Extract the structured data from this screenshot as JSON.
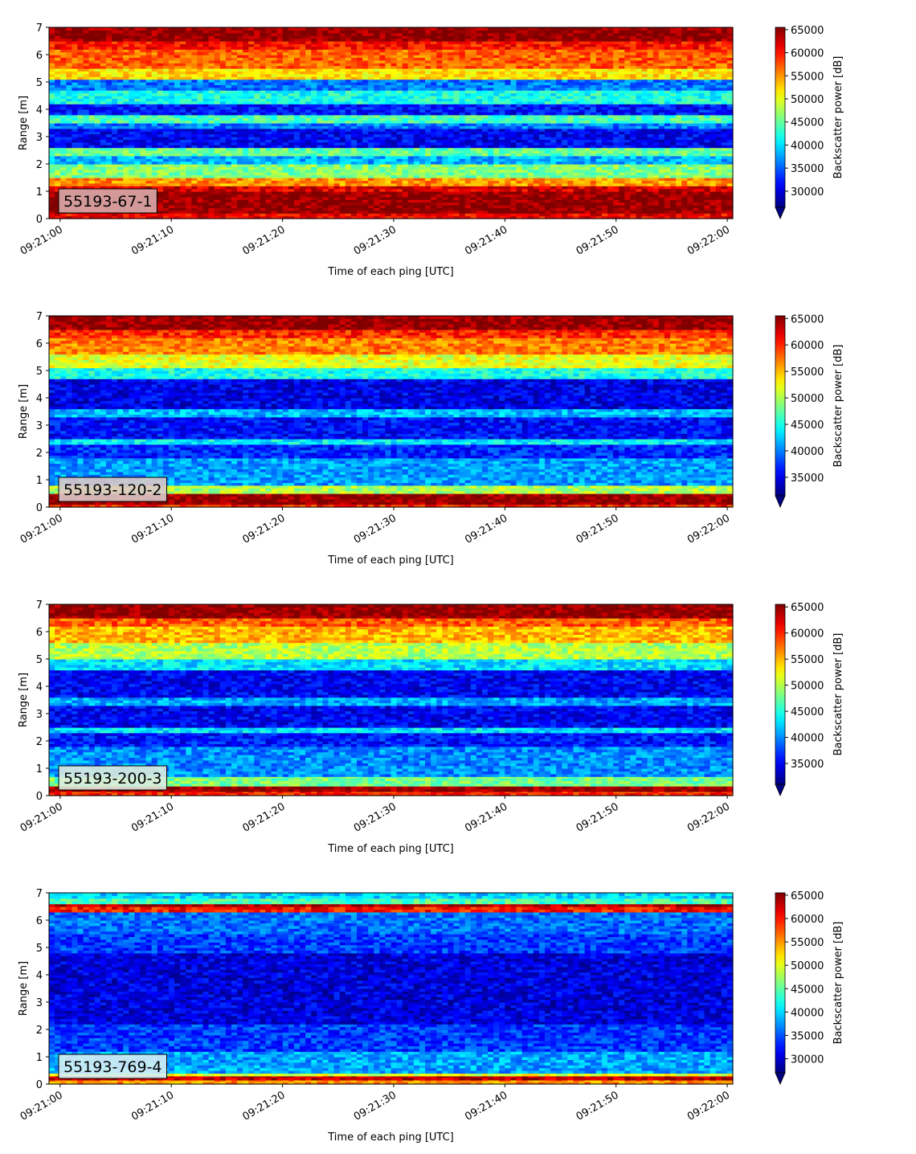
{
  "chart_data": [
    {
      "type": "heatmap",
      "label": "55193-67-1",
      "label_box_color": "#d9aaaa",
      "xlabel": "Time of each ping [UTC]",
      "ylabel": "Range [m]",
      "x_ticks": [
        "09:21:00",
        "09:21:10",
        "09:21:20",
        "09:21:30",
        "09:21:40",
        "09:21:50",
        "09:22:00"
      ],
      "xlim": [
        "09:20:59",
        "09:22:00.5"
      ],
      "ylim": [
        0,
        7
      ],
      "y_ticks": [
        0,
        1,
        2,
        3,
        4,
        5,
        6,
        7
      ],
      "colorbar": {
        "label": "Backscatter power [dB]",
        "ticks": [
          30000,
          35000,
          40000,
          45000,
          50000,
          55000,
          60000,
          65000
        ],
        "range": [
          26500,
          65500
        ],
        "extend": "min",
        "colormap": "jet"
      },
      "layers": [
        {
          "y": [
            0.0,
            0.2
          ],
          "value": 61000
        },
        {
          "y": [
            0.2,
            1.0
          ],
          "value": 65000
        },
        {
          "y": [
            1.0,
            1.2
          ],
          "value": 62000
        },
        {
          "y": [
            1.2,
            1.5
          ],
          "value": 55000
        },
        {
          "y": [
            1.5,
            2.0
          ],
          "value": 46000
        },
        {
          "y": [
            2.0,
            2.3
          ],
          "value": 38000
        },
        {
          "y": [
            2.3,
            2.6
          ],
          "value": 45000
        },
        {
          "y": [
            2.6,
            3.3
          ],
          "value": 31000
        },
        {
          "y": [
            3.3,
            3.5
          ],
          "value": 36000
        },
        {
          "y": [
            3.5,
            3.8
          ],
          "value": 44000
        },
        {
          "y": [
            3.8,
            4.2
          ],
          "value": 32000
        },
        {
          "y": [
            4.2,
            4.7
          ],
          "value": 42000
        },
        {
          "y": [
            4.7,
            5.1
          ],
          "value": 36000
        },
        {
          "y": [
            5.1,
            5.5
          ],
          "value": 52000
        },
        {
          "y": [
            5.5,
            6.2
          ],
          "value": 57000
        },
        {
          "y": [
            6.2,
            6.5
          ],
          "value": 60000
        },
        {
          "y": [
            6.5,
            7.0
          ],
          "value": 65000
        }
      ]
    },
    {
      "type": "heatmap",
      "label": "55193-120-2",
      "label_box_color": "#dcc8c8",
      "xlabel": "Time of each ping [UTC]",
      "ylabel": "Range [m]",
      "x_ticks": [
        "09:21:00",
        "09:21:10",
        "09:21:20",
        "09:21:30",
        "09:21:40",
        "09:21:50",
        "09:22:00"
      ],
      "xlim": [
        "09:20:59",
        "09:22:00.5"
      ],
      "ylim": [
        0,
        7
      ],
      "y_ticks": [
        0,
        1,
        2,
        3,
        4,
        5,
        6,
        7
      ],
      "colorbar": {
        "label": "Backscatter power [dB]",
        "ticks": [
          35000,
          40000,
          45000,
          50000,
          55000,
          60000,
          65000
        ],
        "range": [
          31500,
          65500
        ],
        "extend": "min",
        "colormap": "jet"
      },
      "layers": [
        {
          "y": [
            0.0,
            0.1
          ],
          "value": 60000
        },
        {
          "y": [
            0.1,
            0.5
          ],
          "value": 65000
        },
        {
          "y": [
            0.5,
            0.8
          ],
          "value": 50000
        },
        {
          "y": [
            0.8,
            1.8
          ],
          "value": 41000
        },
        {
          "y": [
            1.8,
            2.3
          ],
          "value": 37000
        },
        {
          "y": [
            2.3,
            2.5
          ],
          "value": 44000
        },
        {
          "y": [
            2.5,
            3.3
          ],
          "value": 36000
        },
        {
          "y": [
            3.3,
            3.6
          ],
          "value": 42000
        },
        {
          "y": [
            3.6,
            4.7
          ],
          "value": 35000
        },
        {
          "y": [
            4.7,
            5.1
          ],
          "value": 45000
        },
        {
          "y": [
            5.1,
            5.6
          ],
          "value": 52000
        },
        {
          "y": [
            5.6,
            6.2
          ],
          "value": 57000
        },
        {
          "y": [
            6.2,
            6.5
          ],
          "value": 60000
        },
        {
          "y": [
            6.5,
            7.0
          ],
          "value": 65000
        }
      ]
    },
    {
      "type": "heatmap",
      "label": "55193-200-3",
      "label_box_color": "#ddecdf",
      "xlabel": "Time of each ping [UTC]",
      "ylabel": "Range [m]",
      "x_ticks": [
        "09:21:00",
        "09:21:10",
        "09:21:20",
        "09:21:30",
        "09:21:40",
        "09:21:50",
        "09:22:00"
      ],
      "xlim": [
        "09:20:59",
        "09:22:00.5"
      ],
      "ylim": [
        0,
        7
      ],
      "y_ticks": [
        0,
        1,
        2,
        3,
        4,
        5,
        6,
        7
      ],
      "colorbar": {
        "label": "Backscatter power [dB]",
        "ticks": [
          35000,
          40000,
          45000,
          50000,
          55000,
          60000,
          65000
        ],
        "range": [
          31000,
          65500
        ],
        "extend": "min",
        "colormap": "jet"
      },
      "layers": [
        {
          "y": [
            0.0,
            0.15
          ],
          "value": 60000
        },
        {
          "y": [
            0.15,
            0.35
          ],
          "value": 65000
        },
        {
          "y": [
            0.35,
            0.7
          ],
          "value": 48000
        },
        {
          "y": [
            0.7,
            1.8
          ],
          "value": 40000
        },
        {
          "y": [
            1.8,
            2.3
          ],
          "value": 36000
        },
        {
          "y": [
            2.3,
            2.5
          ],
          "value": 43000
        },
        {
          "y": [
            2.5,
            3.3
          ],
          "value": 35000
        },
        {
          "y": [
            3.3,
            3.6
          ],
          "value": 41000
        },
        {
          "y": [
            3.6,
            4.6
          ],
          "value": 35000
        },
        {
          "y": [
            4.6,
            5.0
          ],
          "value": 43000
        },
        {
          "y": [
            5.0,
            5.6
          ],
          "value": 50000
        },
        {
          "y": [
            5.6,
            6.2
          ],
          "value": 55000
        },
        {
          "y": [
            6.2,
            6.5
          ],
          "value": 58000
        },
        {
          "y": [
            6.5,
            7.0
          ],
          "value": 65000
        }
      ]
    },
    {
      "type": "heatmap",
      "label": "55193-769-4",
      "label_box_color": "#d6eef4",
      "xlabel": "Time of each ping [UTC]",
      "ylabel": "Range [m]",
      "x_ticks": [
        "09:21:00",
        "09:21:10",
        "09:21:20",
        "09:21:30",
        "09:21:40",
        "09:21:50",
        "09:22:00"
      ],
      "xlim": [
        "09:20:59",
        "09:22:00.5"
      ],
      "ylim": [
        0,
        7
      ],
      "y_ticks": [
        0,
        1,
        2,
        3,
        4,
        5,
        6,
        7
      ],
      "colorbar": {
        "label": "Backscatter power [dB]",
        "ticks": [
          30000,
          35000,
          40000,
          45000,
          50000,
          55000,
          60000,
          65000
        ],
        "range": [
          27000,
          65500
        ],
        "extend": "min",
        "colormap": "jet"
      },
      "layers": [
        {
          "y": [
            0.0,
            0.15
          ],
          "value": 55000
        },
        {
          "y": [
            0.15,
            0.3
          ],
          "value": 63000
        },
        {
          "y": [
            0.3,
            0.4
          ],
          "value": 50000
        },
        {
          "y": [
            0.4,
            1.2
          ],
          "value": 38000
        },
        {
          "y": [
            1.2,
            2.2
          ],
          "value": 34000
        },
        {
          "y": [
            2.2,
            4.8
          ],
          "value": 30500
        },
        {
          "y": [
            4.8,
            5.5
          ],
          "value": 34000
        },
        {
          "y": [
            5.5,
            6.3
          ],
          "value": 36000
        },
        {
          "y": [
            6.3,
            6.5
          ],
          "value": 60000
        },
        {
          "y": [
            6.5,
            6.6
          ],
          "value": 64000
        },
        {
          "y": [
            6.6,
            6.8
          ],
          "value": 44000
        },
        {
          "y": [
            6.8,
            7.0
          ],
          "value": 40000
        }
      ]
    }
  ]
}
